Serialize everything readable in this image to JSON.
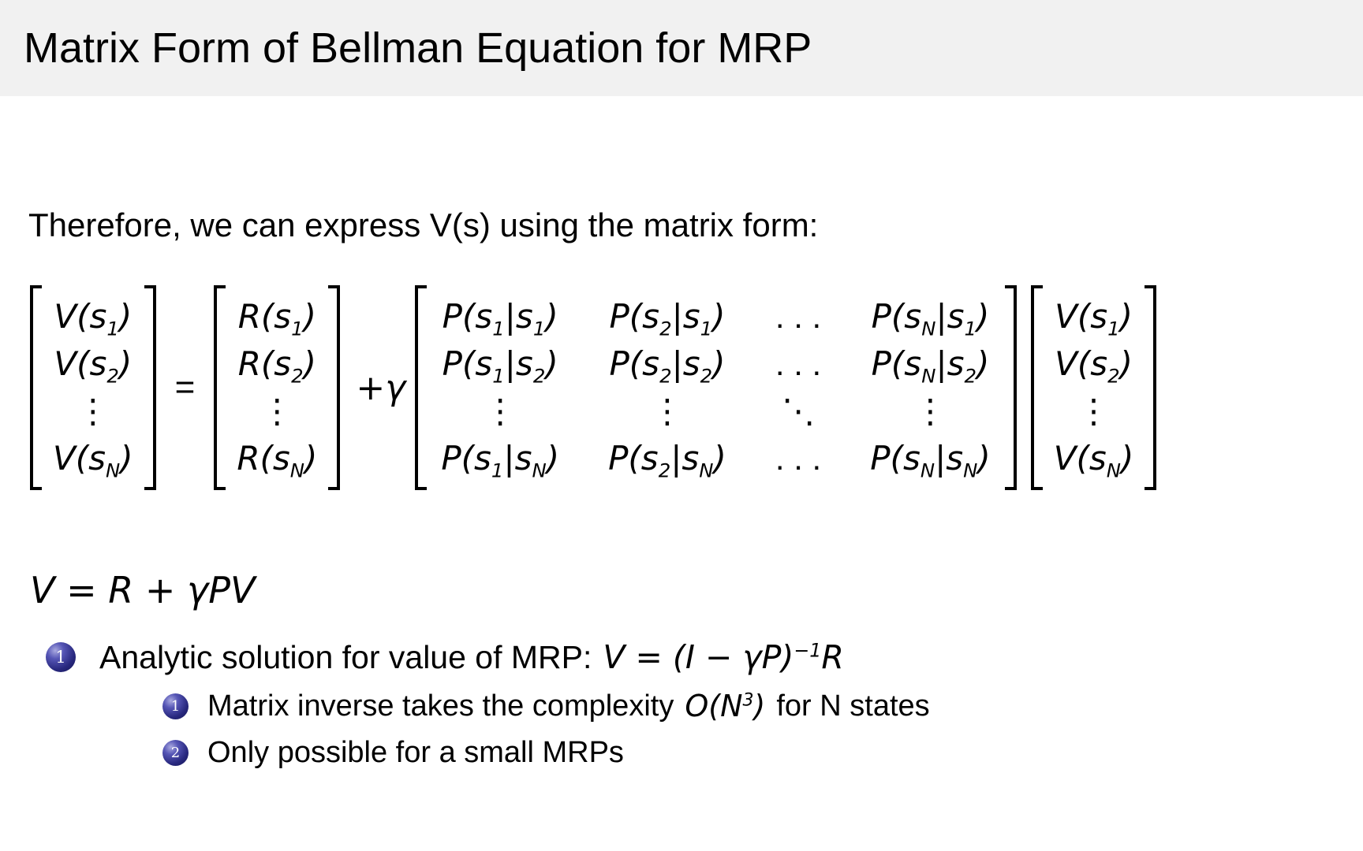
{
  "slide": {
    "title": "Matrix Form of Bellman Equation for MRP",
    "intro": "Therefore, we can express V(s) using the matrix form:",
    "equation": {
      "v_vector": [
        "V(s~1~)",
        "V(s~2~)",
        "⋮",
        "V(s~N~)"
      ],
      "equals": "=",
      "r_vector": [
        "R(s~1~)",
        "R(s~2~)",
        "⋮",
        "R(s~N~)"
      ],
      "plus_gamma": "+γ",
      "p_matrix": [
        [
          "P(s~1~|s~1~)",
          "P(s~2~|s~1~)",
          ". . .",
          "P(s~N~|s~1~)"
        ],
        [
          "P(s~1~|s~2~)",
          "P(s~2~|s~2~)",
          ". . .",
          "P(s~N~|s~2~)"
        ],
        [
          "⋮",
          "⋮",
          "⋱",
          "⋮"
        ],
        [
          "P(s~1~|s~N~)",
          "P(s~2~|s~N~)",
          ". . .",
          "P(s~N~|s~N~)"
        ]
      ],
      "v_vector_right": [
        "V(s~1~)",
        "V(s~2~)",
        "⋮",
        "V(s~N~)"
      ],
      "compact": "V = R + γPV"
    },
    "bullets": {
      "item1": {
        "marker": "1",
        "text": "Analytic solution for value of MRP:",
        "math": "V = (I − γP)^−1^R"
      },
      "sub1": {
        "marker": "1",
        "text": "Matrix inverse takes the complexity",
        "math": "O(N^3^)",
        "text_after": "for N states"
      },
      "sub2": {
        "marker": "2",
        "text": "Only possible for a small MRPs"
      }
    },
    "colors": {
      "header_bg": "#f1f1f1",
      "text": "#000000",
      "bullet_ball": "#28287e"
    }
  }
}
